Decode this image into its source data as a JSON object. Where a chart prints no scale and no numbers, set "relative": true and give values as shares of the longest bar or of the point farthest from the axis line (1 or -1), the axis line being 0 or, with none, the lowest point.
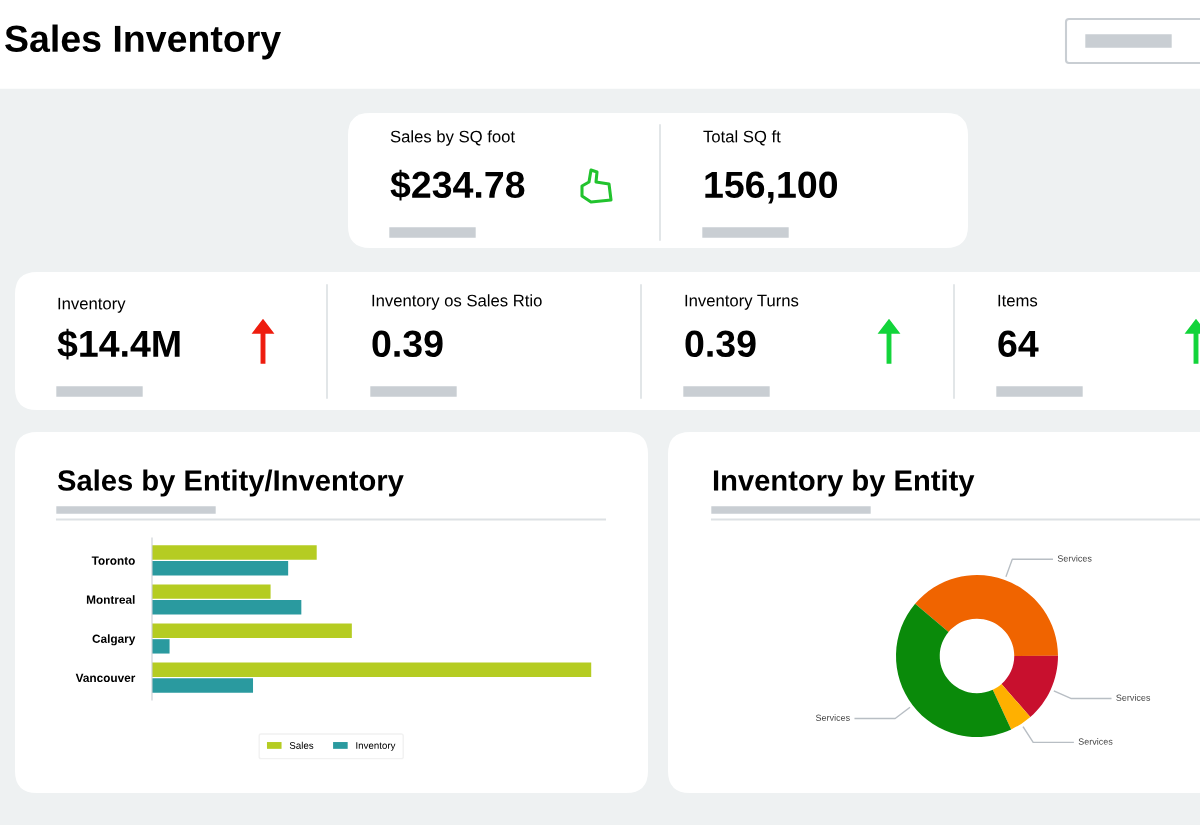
{
  "chart_data": [
    {
      "type": "other",
      "title": "Sales Inventory",
      "annotations": [
        "Sales by SQ foot",
        "$234.78",
        "Total SQ ft",
        "156,100",
        "Inventory",
        "$14.4M",
        "Inventory os Sales Rtio",
        "0.39",
        "Inventory Turns",
        "0.39",
        "Items",
        "64"
      ]
    },
    {
      "type": "bar",
      "title": "Sales by Entity/Inventory",
      "orientation": "horizontal",
      "relative": true,
      "categories": [
        "Toronto",
        "Montreal",
        "Calgary",
        "Vancouver"
      ],
      "series": [
        {
          "name": "Sales",
          "color": "#b5cc22",
          "values": [
            0.375,
            0.27,
            0.455,
            1.0
          ]
        },
        {
          "name": "Inventory",
          "color": "#2a9a9f",
          "values": [
            0.31,
            0.34,
            0.04,
            0.23
          ]
        }
      ],
      "legend": "bottom",
      "grid": false
    },
    {
      "type": "donut",
      "title": "Inventory by Entity",
      "categories": [
        "Services",
        "Services",
        "Services",
        "Services"
      ],
      "values": [
        38.8,
        13.6,
        4.5,
        43.1
      ],
      "colors": [
        "#f06400",
        "#c8102e",
        "#ffb000",
        "#0a8a0a"
      ]
    }
  ]
}
